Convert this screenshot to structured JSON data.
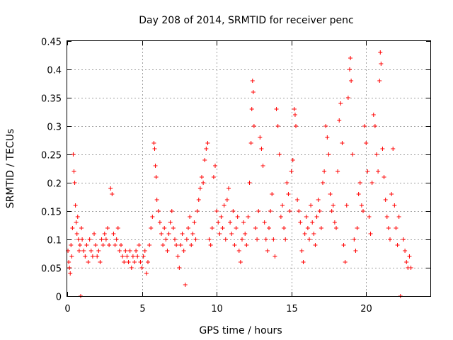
{
  "chart_data": {
    "type": "scatter",
    "title": "Day 208 of 2014, SRMTID for receiver penc",
    "xlabel": "GPS time / hours",
    "ylabel": "SRMTID / TECUs",
    "xlim": [
      0,
      24.3
    ],
    "ylim": [
      0,
      0.45
    ],
    "xticks": [
      0,
      5,
      10,
      15,
      20
    ],
    "xtick_labels": [
      "0",
      "5",
      "10",
      "15",
      "20"
    ],
    "yticks": [
      0,
      0.05,
      0.1,
      0.15,
      0.2,
      0.25,
      0.3,
      0.35,
      0.4,
      0.45
    ],
    "ytick_labels": [
      "0",
      "0.05",
      "0.1",
      "0.15",
      "0.2",
      "0.25",
      "0.3",
      "0.35",
      "0.4",
      "0.45"
    ],
    "grid": true,
    "marker": "+",
    "color": "#ff0000",
    "series": [
      {
        "name": "SRMTID",
        "points": [
          [
            0.05,
            0.08
          ],
          [
            0.1,
            0.06
          ],
          [
            0.15,
            0.05
          ],
          [
            0.2,
            0.04
          ],
          [
            0.25,
            0.09
          ],
          [
            0.3,
            0.07
          ],
          [
            0.35,
            0.12
          ],
          [
            0.4,
            0.25
          ],
          [
            0.45,
            0.22
          ],
          [
            0.5,
            0.2
          ],
          [
            0.55,
            0.16
          ],
          [
            0.6,
            0.13
          ],
          [
            0.65,
            0.11
          ],
          [
            0.7,
            0.14
          ],
          [
            0.75,
            0.1
          ],
          [
            0.8,
            0.08
          ],
          [
            0.85,
            0.09
          ],
          [
            0.9,
            0.0
          ],
          [
            0.95,
            0.12
          ],
          [
            1.0,
            0.1
          ],
          [
            1.1,
            0.08
          ],
          [
            1.2,
            0.07
          ],
          [
            1.3,
            0.09
          ],
          [
            1.4,
            0.06
          ],
          [
            1.5,
            0.1
          ],
          [
            1.6,
            0.08
          ],
          [
            1.7,
            0.07
          ],
          [
            1.8,
            0.11
          ],
          [
            1.9,
            0.09
          ],
          [
            2.0,
            0.07
          ],
          [
            2.1,
            0.08
          ],
          [
            2.2,
            0.06
          ],
          [
            2.3,
            0.1
          ],
          [
            2.4,
            0.09
          ],
          [
            2.5,
            0.11
          ],
          [
            2.6,
            0.1
          ],
          [
            2.7,
            0.12
          ],
          [
            2.8,
            0.09
          ],
          [
            2.9,
            0.19
          ],
          [
            3.0,
            0.18
          ],
          [
            3.1,
            0.11
          ],
          [
            3.2,
            0.09
          ],
          [
            3.3,
            0.1
          ],
          [
            3.4,
            0.12
          ],
          [
            3.5,
            0.08
          ],
          [
            3.6,
            0.09
          ],
          [
            3.7,
            0.07
          ],
          [
            3.8,
            0.06
          ],
          [
            3.9,
            0.08
          ],
          [
            4.0,
            0.07
          ],
          [
            4.1,
            0.06
          ],
          [
            4.2,
            0.08
          ],
          [
            4.3,
            0.05
          ],
          [
            4.4,
            0.07
          ],
          [
            4.5,
            0.06
          ],
          [
            4.6,
            0.08
          ],
          [
            4.7,
            0.07
          ],
          [
            4.8,
            0.09
          ],
          [
            4.9,
            0.06
          ],
          [
            5.0,
            0.05
          ],
          [
            5.1,
            0.07
          ],
          [
            5.2,
            0.08
          ],
          [
            5.3,
            0.04
          ],
          [
            5.4,
            0.06
          ],
          [
            5.5,
            0.09
          ],
          [
            5.6,
            0.12
          ],
          [
            5.7,
            0.14
          ],
          [
            5.8,
            0.27
          ],
          [
            5.85,
            0.26
          ],
          [
            5.9,
            0.23
          ],
          [
            5.95,
            0.21
          ],
          [
            6.0,
            0.17
          ],
          [
            6.1,
            0.15
          ],
          [
            6.2,
            0.13
          ],
          [
            6.3,
            0.11
          ],
          [
            6.4,
            0.09
          ],
          [
            6.5,
            0.12
          ],
          [
            6.6,
            0.1
          ],
          [
            6.7,
            0.08
          ],
          [
            6.8,
            0.11
          ],
          [
            6.9,
            0.13
          ],
          [
            7.0,
            0.15
          ],
          [
            7.1,
            0.12
          ],
          [
            7.2,
            0.1
          ],
          [
            7.3,
            0.09
          ],
          [
            7.4,
            0.07
          ],
          [
            7.5,
            0.05
          ],
          [
            7.6,
            0.09
          ],
          [
            7.7,
            0.11
          ],
          [
            7.8,
            0.08
          ],
          [
            7.9,
            0.02
          ],
          [
            8.0,
            0.1
          ],
          [
            8.1,
            0.12
          ],
          [
            8.2,
            0.14
          ],
          [
            8.3,
            0.09
          ],
          [
            8.4,
            0.11
          ],
          [
            8.5,
            0.13
          ],
          [
            8.6,
            0.1
          ],
          [
            8.7,
            0.15
          ],
          [
            8.8,
            0.17
          ],
          [
            8.9,
            0.19
          ],
          [
            9.0,
            0.21
          ],
          [
            9.1,
            0.2
          ],
          [
            9.2,
            0.24
          ],
          [
            9.3,
            0.26
          ],
          [
            9.4,
            0.27
          ],
          [
            9.5,
            0.1
          ],
          [
            9.6,
            0.09
          ],
          [
            9.7,
            0.12
          ],
          [
            9.8,
            0.21
          ],
          [
            9.9,
            0.23
          ],
          [
            10.0,
            0.15
          ],
          [
            10.1,
            0.13
          ],
          [
            10.2,
            0.11
          ],
          [
            10.3,
            0.14
          ],
          [
            10.4,
            0.12
          ],
          [
            10.5,
            0.16
          ],
          [
            10.6,
            0.1
          ],
          [
            10.7,
            0.17
          ],
          [
            10.8,
            0.19
          ],
          [
            10.9,
            0.13
          ],
          [
            11.0,
            0.11
          ],
          [
            11.1,
            0.15
          ],
          [
            11.2,
            0.09
          ],
          [
            11.3,
            0.12
          ],
          [
            11.4,
            0.14
          ],
          [
            11.5,
            0.08
          ],
          [
            11.6,
            0.06
          ],
          [
            11.7,
            0.1
          ],
          [
            11.8,
            0.13
          ],
          [
            11.9,
            0.11
          ],
          [
            12.0,
            0.09
          ],
          [
            12.1,
            0.14
          ],
          [
            12.2,
            0.2
          ],
          [
            12.3,
            0.27
          ],
          [
            12.35,
            0.33
          ],
          [
            12.4,
            0.38
          ],
          [
            12.45,
            0.36
          ],
          [
            12.5,
            0.3
          ],
          [
            12.6,
            0.12
          ],
          [
            12.7,
            0.1
          ],
          [
            12.8,
            0.15
          ],
          [
            12.9,
            0.28
          ],
          [
            13.0,
            0.26
          ],
          [
            13.1,
            0.23
          ],
          [
            13.2,
            0.13
          ],
          [
            13.3,
            0.1
          ],
          [
            13.4,
            0.08
          ],
          [
            13.5,
            0.12
          ],
          [
            13.6,
            0.15
          ],
          [
            13.7,
            0.18
          ],
          [
            13.8,
            0.1
          ],
          [
            13.9,
            0.07
          ],
          [
            14.0,
            0.33
          ],
          [
            14.1,
            0.3
          ],
          [
            14.2,
            0.25
          ],
          [
            14.3,
            0.14
          ],
          [
            14.4,
            0.16
          ],
          [
            14.5,
            0.12
          ],
          [
            14.6,
            0.1
          ],
          [
            14.7,
            0.2
          ],
          [
            14.8,
            0.18
          ],
          [
            14.9,
            0.15
          ],
          [
            15.0,
            0.22
          ],
          [
            15.1,
            0.24
          ],
          [
            15.2,
            0.33
          ],
          [
            15.25,
            0.32
          ],
          [
            15.3,
            0.3
          ],
          [
            15.4,
            0.17
          ],
          [
            15.5,
            0.15
          ],
          [
            15.6,
            0.13
          ],
          [
            15.7,
            0.08
          ],
          [
            15.8,
            0.06
          ],
          [
            15.9,
            0.11
          ],
          [
            16.0,
            0.14
          ],
          [
            16.1,
            0.12
          ],
          [
            16.2,
            0.1
          ],
          [
            16.3,
            0.16
          ],
          [
            16.4,
            0.13
          ],
          [
            16.5,
            0.11
          ],
          [
            16.6,
            0.09
          ],
          [
            16.7,
            0.14
          ],
          [
            16.8,
            0.17
          ],
          [
            16.9,
            0.15
          ],
          [
            17.0,
            0.12
          ],
          [
            17.1,
            0.2
          ],
          [
            17.2,
            0.22
          ],
          [
            17.3,
            0.3
          ],
          [
            17.4,
            0.28
          ],
          [
            17.5,
            0.25
          ],
          [
            17.6,
            0.18
          ],
          [
            17.7,
            0.15
          ],
          [
            17.8,
            0.16
          ],
          [
            17.9,
            0.13
          ],
          [
            18.0,
            0.12
          ],
          [
            18.1,
            0.22
          ],
          [
            18.2,
            0.31
          ],
          [
            18.3,
            0.34
          ],
          [
            18.4,
            0.27
          ],
          [
            18.5,
            0.09
          ],
          [
            18.6,
            0.06
          ],
          [
            18.7,
            0.16
          ],
          [
            18.8,
            0.35
          ],
          [
            18.9,
            0.4
          ],
          [
            18.95,
            0.42
          ],
          [
            19.0,
            0.38
          ],
          [
            19.1,
            0.25
          ],
          [
            19.2,
            0.1
          ],
          [
            19.3,
            0.08
          ],
          [
            19.4,
            0.12
          ],
          [
            19.5,
            0.18
          ],
          [
            19.6,
            0.2
          ],
          [
            19.7,
            0.16
          ],
          [
            19.8,
            0.15
          ],
          [
            19.9,
            0.3
          ],
          [
            20.0,
            0.27
          ],
          [
            20.1,
            0.22
          ],
          [
            20.2,
            0.14
          ],
          [
            20.3,
            0.11
          ],
          [
            20.4,
            0.2
          ],
          [
            20.5,
            0.32
          ],
          [
            20.6,
            0.3
          ],
          [
            20.7,
            0.25
          ],
          [
            20.8,
            0.22
          ],
          [
            20.9,
            0.38
          ],
          [
            20.95,
            0.43
          ],
          [
            21.0,
            0.41
          ],
          [
            21.1,
            0.26
          ],
          [
            21.2,
            0.21
          ],
          [
            21.3,
            0.17
          ],
          [
            21.4,
            0.14
          ],
          [
            21.5,
            0.12
          ],
          [
            21.6,
            0.1
          ],
          [
            21.7,
            0.18
          ],
          [
            21.8,
            0.26
          ],
          [
            21.9,
            0.16
          ],
          [
            22.0,
            0.12
          ],
          [
            22.1,
            0.09
          ],
          [
            22.2,
            0.14
          ],
          [
            22.3,
            0.0
          ],
          [
            22.5,
            0.1
          ],
          [
            22.6,
            0.08
          ],
          [
            22.7,
            0.06
          ],
          [
            22.8,
            0.05
          ],
          [
            22.9,
            0.07
          ],
          [
            23.0,
            0.05
          ]
        ]
      }
    ]
  }
}
